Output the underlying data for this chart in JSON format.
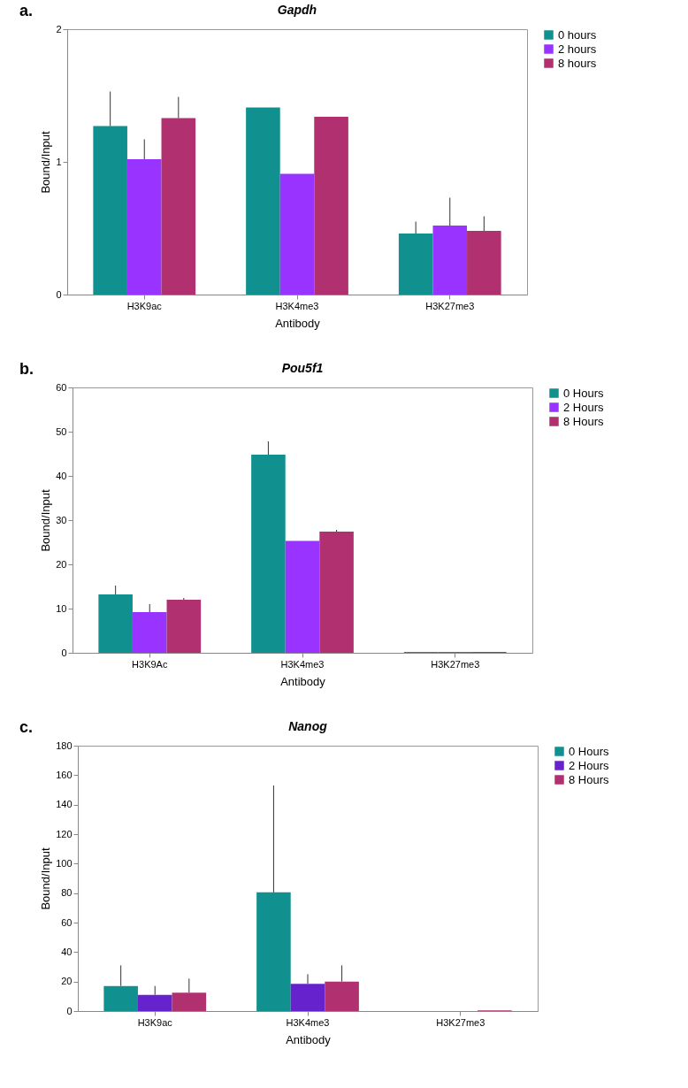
{
  "chart_data": [
    {
      "type": "bar",
      "title": "Gapdh",
      "xlabel": "Antibody",
      "ylabel": "Bound/Input",
      "annotations": [
        "a."
      ],
      "legend": "right",
      "categories": [
        "H3K9ac",
        "H3K4me3",
        "H3K27me3"
      ],
      "ylim": [
        0,
        2
      ],
      "yticks": [
        0,
        1,
        2
      ],
      "series": [
        {
          "name": "0 hours",
          "color": "#119090",
          "values": [
            1.27,
            1.41,
            0.46
          ],
          "errors": [
            [
              1.27,
              1.53
            ],
            null,
            [
              0.46,
              0.55
            ]
          ]
        },
        {
          "name": "2 hours",
          "color": "#9933ff",
          "values": [
            1.02,
            0.91,
            0.52
          ],
          "errors": [
            [
              1.02,
              1.17
            ],
            null,
            [
              0.52,
              0.73
            ]
          ]
        },
        {
          "name": "8 hours",
          "color": "#b03070",
          "values": [
            1.33,
            1.34,
            0.48
          ],
          "errors": [
            [
              1.33,
              1.49
            ],
            null,
            [
              0.48,
              0.59
            ]
          ]
        }
      ]
    },
    {
      "type": "bar",
      "title": "Pou5f1",
      "xlabel": "Antibody",
      "ylabel": "Bound/Input",
      "annotations": [
        "b."
      ],
      "legend": "right",
      "categories": [
        "H3K9Ac",
        "H3K4me3",
        "H3K27me3"
      ],
      "ylim": [
        0,
        60
      ],
      "yticks": [
        0,
        10,
        20,
        30,
        40,
        50,
        60
      ],
      "series": [
        {
          "name": "0 Hours",
          "color": "#119090",
          "values": [
            13.2,
            44.8,
            0.2
          ],
          "errors": [
            [
              13.2,
              15.2
            ],
            [
              44.8,
              47.8
            ],
            null
          ]
        },
        {
          "name": "2 Hours",
          "color": "#9933ff",
          "values": [
            9.2,
            25.3,
            0.2
          ],
          "errors": [
            [
              9.2,
              11
            ],
            null,
            null
          ]
        },
        {
          "name": "8 Hours",
          "color": "#b03070",
          "values": [
            12,
            27.4,
            0.2
          ],
          "errors": [
            [
              12,
              12.4
            ],
            [
              27.4,
              27.8
            ],
            null
          ]
        }
      ]
    },
    {
      "type": "bar",
      "title": "Nanog",
      "xlabel": "Antibody",
      "ylabel": "Bound/Input",
      "annotations": [
        "c."
      ],
      "legend": "right",
      "categories": [
        "H3K9ac",
        "H3K4me3",
        "H3K27me3"
      ],
      "ylim": [
        0,
        180
      ],
      "yticks": [
        0,
        20,
        40,
        60,
        80,
        100,
        120,
        140,
        160,
        180
      ],
      "series": [
        {
          "name": "0 Hours",
          "color": "#119090",
          "values": [
            17,
            80.5,
            null
          ],
          "errors": [
            [
              17,
              31
            ],
            [
              80.5,
              153
            ],
            null
          ]
        },
        {
          "name": "2 Hours",
          "color": "#6622cc",
          "values": [
            11,
            18.5,
            null
          ],
          "errors": [
            [
              11,
              17
            ],
            [
              18.5,
              25
            ],
            null
          ]
        },
        {
          "name": "8 Hours",
          "color": "#b03070",
          "values": [
            12.5,
            20,
            0.5
          ],
          "errors": [
            [
              12.5,
              22
            ],
            [
              20,
              31
            ],
            null
          ]
        }
      ]
    }
  ]
}
